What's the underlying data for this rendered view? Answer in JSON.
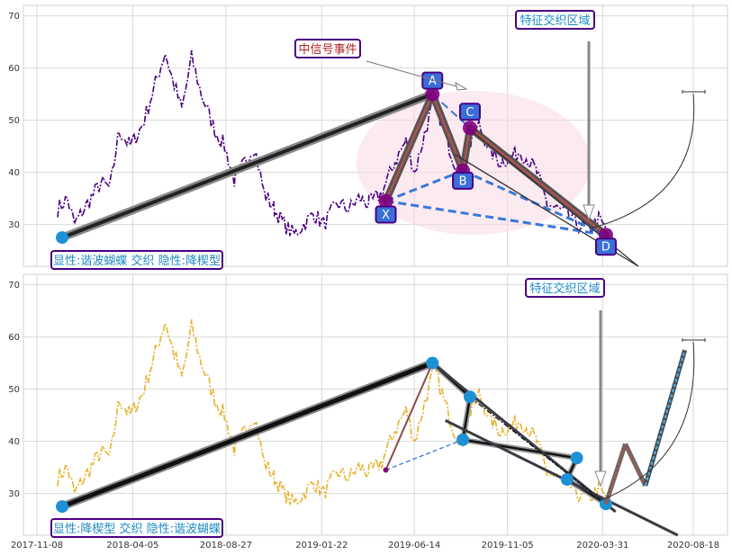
{
  "chart_data": [
    {
      "type": "line",
      "panel": "top",
      "series_color": "#4b0082",
      "ylim": [
        22,
        72
      ],
      "yticks": [
        "30",
        "40",
        "50",
        "60",
        "70"
      ],
      "grid": true,
      "price_anchors": [
        [
          "2017-12-10",
          33
        ],
        [
          "2017-12-25",
          35
        ],
        [
          "2018-01-05",
          30
        ],
        [
          "2018-01-25",
          34
        ],
        [
          "2018-02-15",
          38
        ],
        [
          "2018-03-01",
          37
        ],
        [
          "2018-03-15",
          48
        ],
        [
          "2018-04-01",
          45
        ],
        [
          "2018-04-20",
          49
        ],
        [
          "2018-05-10",
          57
        ],
        [
          "2018-05-25",
          63
        ],
        [
          "2018-06-05",
          58
        ],
        [
          "2018-06-20",
          52
        ],
        [
          "2018-07-05",
          62
        ],
        [
          "2018-07-20",
          55
        ],
        [
          "2018-08-10",
          48
        ],
        [
          "2018-08-25",
          45
        ],
        [
          "2018-09-10",
          38
        ],
        [
          "2018-09-25",
          42
        ],
        [
          "2018-10-10",
          45
        ],
        [
          "2018-10-25",
          36
        ],
        [
          "2018-11-10",
          33
        ],
        [
          "2018-11-25",
          30
        ],
        [
          "2018-12-10",
          28
        ],
        [
          "2018-12-25",
          30
        ],
        [
          "2019-01-10",
          32
        ],
        [
          "2019-01-25",
          30
        ],
        [
          "2019-02-15",
          34
        ],
        [
          "2019-03-05",
          33
        ],
        [
          "2019-03-20",
          35
        ],
        [
          "2019-04-05",
          34
        ],
        [
          "2019-04-25",
          36
        ],
        [
          "2019-05-15",
          42
        ],
        [
          "2019-06-01",
          46
        ],
        [
          "2019-06-15",
          40
        ],
        [
          "2019-07-01",
          48
        ],
        [
          "2019-07-15",
          54
        ],
        [
          "2019-08-01",
          47
        ],
        [
          "2019-08-15",
          42
        ],
        [
          "2019-08-28",
          40
        ],
        [
          "2019-09-10",
          46
        ],
        [
          "2019-09-22",
          49
        ],
        [
          "2019-10-10",
          44
        ],
        [
          "2019-10-25",
          42
        ],
        [
          "2019-11-10",
          43
        ],
        [
          "2019-11-25",
          44
        ],
        [
          "2019-12-10",
          42
        ],
        [
          "2019-12-20",
          40
        ],
        [
          "2020-01-05",
          34
        ],
        [
          "2020-01-20",
          33
        ],
        [
          "2020-02-05",
          32
        ],
        [
          "2020-02-20",
          30
        ],
        [
          "2020-03-10",
          29
        ],
        [
          "2020-03-25",
          31
        ],
        [
          "2020-04-05",
          29
        ]
      ],
      "pattern_points": [
        {
          "label": "X",
          "date": "2019-05-01",
          "value": 34.5
        },
        {
          "label": "A",
          "date": "2019-07-12",
          "value": 55
        },
        {
          "label": "B",
          "date": "2019-08-28",
          "value": 40.3
        },
        {
          "label": "C",
          "date": "2019-09-08",
          "value": 48.5
        },
        {
          "label": "D",
          "date": "2020-04-05",
          "value": 28
        }
      ],
      "long_trend": {
        "from": [
          "2017-12-17",
          27.5
        ],
        "to": [
          "2019-07-12",
          55
        ]
      },
      "annotations": [
        {
          "text": "中信号事件",
          "color": "#b22222"
        },
        {
          "text": "特征交织区域",
          "color": "#1e8bc3"
        },
        {
          "text": "显性:谐波蝴蝶 交织 隐性:降楔型",
          "color": "#1e8bc3"
        }
      ]
    },
    {
      "type": "line",
      "panel": "bottom",
      "series_color": "#e9b22d",
      "ylim": [
        22,
        72
      ],
      "yticks": [
        "30",
        "40",
        "50",
        "60",
        "70"
      ],
      "grid": true,
      "wedge_points": [
        {
          "date": "2019-07-12",
          "value": 55
        },
        {
          "date": "2019-09-08",
          "value": 48.5
        },
        {
          "date": "2019-08-28",
          "value": 40.3
        },
        {
          "date": "2020-02-20",
          "value": 36.8
        },
        {
          "date": "2020-02-05",
          "value": 32.7
        },
        {
          "date": "2020-04-05",
          "value": 28
        }
      ],
      "projection": [
        [
          "2020-04-05",
          28
        ],
        [
          "2020-05-05",
          39.5
        ],
        [
          "2020-06-05",
          31.5
        ],
        [
          "2020-08-05",
          57.5
        ]
      ],
      "annotations": [
        {
          "text": "特征交织区域",
          "color": "#1e8bc3"
        },
        {
          "text": "显性:降楔型 交织 隐性:谐波蝴蝶",
          "color": "#1e8bc3"
        }
      ]
    }
  ],
  "xaxis": {
    "ticks": [
      {
        "date": "2017-11-08",
        "label": "2017-11-08"
      },
      {
        "date": "2018-04-05",
        "label": "2018-04-05"
      },
      {
        "date": "2018-08-27",
        "label": "2018-08-27"
      },
      {
        "date": "2019-01-22",
        "label": "2019-01-22"
      },
      {
        "date": "2019-06-14",
        "label": "2019-06-14"
      },
      {
        "date": "2019-11-05",
        "label": "2019-11-05"
      },
      {
        "date": "2020-03-31",
        "label": "2020-03-31"
      },
      {
        "date": "2020-08-18",
        "label": "2020-08-18"
      }
    ]
  }
}
